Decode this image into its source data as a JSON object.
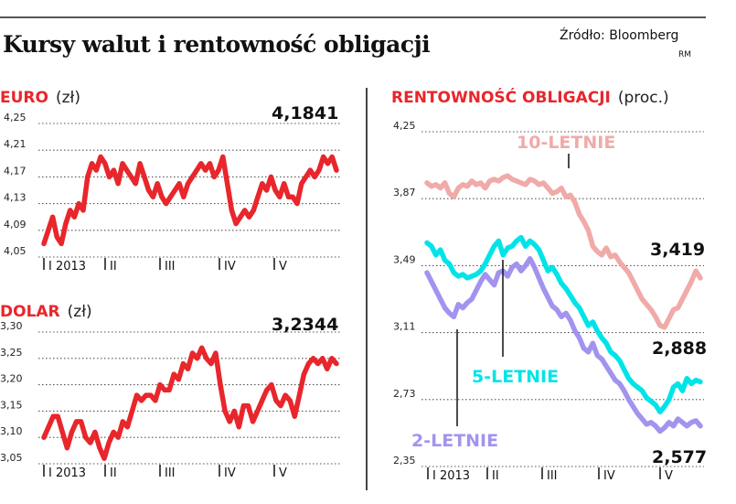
{
  "header": {
    "title": "Kursy walut i rentowność obligacji",
    "source": "Źródło: Bloomberg",
    "initials": "RM"
  },
  "chart_data": [
    {
      "type": "line",
      "title": "EURO",
      "unit": "(zł)",
      "ylim": [
        4.05,
        4.25
      ],
      "yticks": [
        "4,25",
        "4,21",
        "4,17",
        "4,13",
        "4,09",
        "4,05"
      ],
      "xticks": [
        "I 2013",
        "II",
        "III",
        "IV",
        "V"
      ],
      "last_value_label": "4,1841",
      "series": [
        {
          "color": "#e8262b",
          "values": [
            4.07,
            4.09,
            4.11,
            4.08,
            4.07,
            4.1,
            4.12,
            4.11,
            4.13,
            4.12,
            4.17,
            4.19,
            4.18,
            4.2,
            4.19,
            4.17,
            4.18,
            4.16,
            4.19,
            4.18,
            4.17,
            4.16,
            4.19,
            4.17,
            4.15,
            4.14,
            4.16,
            4.14,
            4.13,
            4.14,
            4.15,
            4.16,
            4.14,
            4.16,
            4.17,
            4.18,
            4.19,
            4.18,
            4.19,
            4.17,
            4.18,
            4.2,
            4.16,
            4.12,
            4.1,
            4.11,
            4.12,
            4.11,
            4.12,
            4.14,
            4.16,
            4.15,
            4.17,
            4.15,
            4.14,
            4.16,
            4.14,
            4.14,
            4.13,
            4.16,
            4.17,
            4.18,
            4.17,
            4.18,
            4.2,
            4.19,
            4.2,
            4.18
          ]
        }
      ]
    },
    {
      "type": "line",
      "title": "DOLAR",
      "unit": "(zł)",
      "ylim": [
        3.05,
        3.3
      ],
      "yticks": [
        "3,30",
        "3,25",
        "3,20",
        "3,15",
        "3,10",
        "3,05"
      ],
      "xticks": [
        "I 2013",
        "II",
        "III",
        "IV",
        "V"
      ],
      "last_value_label": "3,2344",
      "series": [
        {
          "color": "#e8262b",
          "values": [
            3.1,
            3.12,
            3.14,
            3.14,
            3.11,
            3.08,
            3.11,
            3.13,
            3.13,
            3.1,
            3.09,
            3.11,
            3.08,
            3.06,
            3.09,
            3.11,
            3.1,
            3.13,
            3.12,
            3.15,
            3.18,
            3.17,
            3.18,
            3.18,
            3.17,
            3.2,
            3.19,
            3.19,
            3.22,
            3.21,
            3.24,
            3.23,
            3.26,
            3.25,
            3.27,
            3.25,
            3.24,
            3.26,
            3.2,
            3.15,
            3.13,
            3.15,
            3.12,
            3.16,
            3.16,
            3.13,
            3.15,
            3.17,
            3.19,
            3.2,
            3.17,
            3.16,
            3.18,
            3.17,
            3.14,
            3.18,
            3.22,
            3.24,
            3.25,
            3.24,
            3.25,
            3.23,
            3.25,
            3.24
          ]
        }
      ]
    },
    {
      "type": "line",
      "title": "RENTOWNOŚĆ OBLIGACJI",
      "unit": "(proc.)",
      "ylim": [
        2.35,
        4.25
      ],
      "yticks": [
        "4,25",
        "3,87",
        "3,49",
        "3,11",
        "2,73",
        "2,35"
      ],
      "xticks": [
        "I 2013",
        "II",
        "III",
        "IV",
        "V"
      ],
      "series": [
        {
          "name": "10-LETNIE",
          "color": "#f0aaa8",
          "end_label": "3,419",
          "values": [
            3.96,
            3.94,
            3.95,
            3.93,
            3.96,
            3.9,
            3.88,
            3.93,
            3.95,
            3.94,
            3.97,
            3.95,
            3.96,
            3.93,
            3.97,
            3.98,
            3.97,
            3.99,
            4.0,
            3.98,
            3.97,
            3.96,
            3.95,
            3.98,
            3.97,
            3.95,
            3.96,
            3.93,
            3.9,
            3.91,
            3.93,
            3.88,
            3.89,
            3.85,
            3.78,
            3.74,
            3.69,
            3.6,
            3.57,
            3.55,
            3.59,
            3.54,
            3.55,
            3.51,
            3.48,
            3.45,
            3.4,
            3.35,
            3.3,
            3.27,
            3.24,
            3.2,
            3.15,
            3.14,
            3.19,
            3.24,
            3.25,
            3.3,
            3.35,
            3.4,
            3.46,
            3.42
          ]
        },
        {
          "name": "5-LETNIE",
          "color": "#00e4e8",
          "end_label": "",
          "values": [
            3.62,
            3.6,
            3.55,
            3.58,
            3.52,
            3.5,
            3.45,
            3.43,
            3.44,
            3.42,
            3.43,
            3.44,
            3.46,
            3.5,
            3.55,
            3.6,
            3.63,
            3.55,
            3.59,
            3.6,
            3.63,
            3.65,
            3.6,
            3.63,
            3.61,
            3.58,
            3.52,
            3.46,
            3.48,
            3.44,
            3.39,
            3.36,
            3.32,
            3.28,
            3.25,
            3.2,
            3.15,
            3.17,
            3.12,
            3.08,
            3.05,
            3.0,
            2.98,
            2.95,
            2.9,
            2.85,
            2.82,
            2.8,
            2.78,
            2.74,
            2.72,
            2.7,
            2.66,
            2.69,
            2.73,
            2.8,
            2.82,
            2.78,
            2.85,
            2.82,
            2.84,
            2.83
          ]
        },
        {
          "name": "2-LETNIE",
          "color": "#a393ef",
          "end_label": "2,577",
          "values": [
            3.45,
            3.4,
            3.35,
            3.3,
            3.25,
            3.22,
            3.2,
            3.27,
            3.25,
            3.28,
            3.3,
            3.35,
            3.4,
            3.44,
            3.41,
            3.38,
            3.45,
            3.46,
            3.43,
            3.48,
            3.5,
            3.46,
            3.49,
            3.53,
            3.48,
            3.42,
            3.36,
            3.31,
            3.26,
            3.24,
            3.2,
            3.22,
            3.18,
            3.12,
            3.08,
            3.02,
            3.0,
            3.05,
            2.98,
            2.96,
            2.92,
            2.88,
            2.84,
            2.82,
            2.78,
            2.73,
            2.69,
            2.65,
            2.62,
            2.59,
            2.6,
            2.58,
            2.55,
            2.57,
            2.6,
            2.58,
            2.62,
            2.6,
            2.58,
            2.6,
            2.61,
            2.58
          ]
        }
      ]
    }
  ]
}
